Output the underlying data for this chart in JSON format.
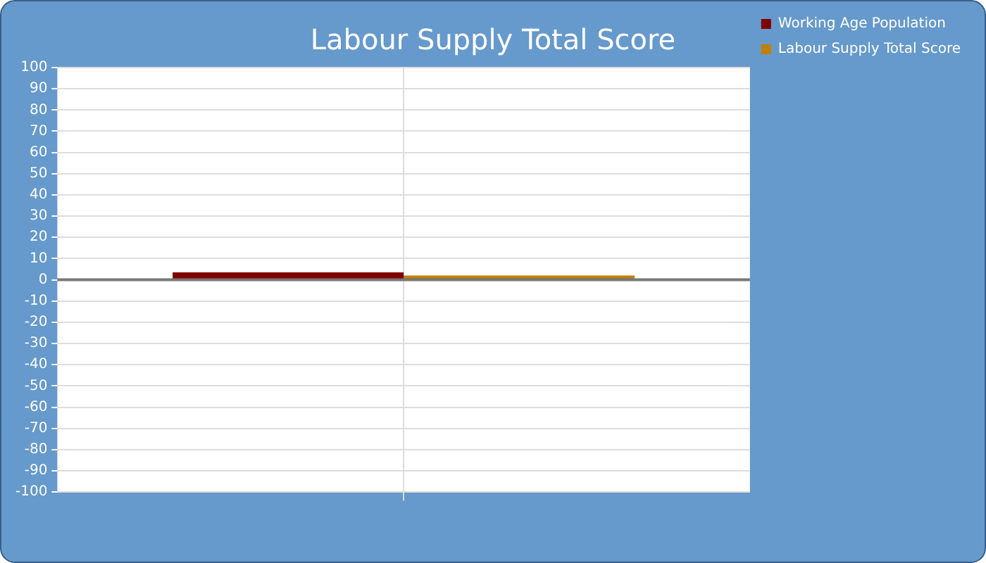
{
  "chart_data": {
    "type": "bar",
    "title": "Labour Supply Total Score",
    "categories": [
      null
    ],
    "series": [
      {
        "name": "Working Age Population",
        "color": "#800000",
        "values": [
          3.5
        ]
      },
      {
        "name": "Labour Supply Total Score",
        "color": "#c08000",
        "values": [
          2
        ]
      }
    ],
    "ylim": [
      -100,
      100
    ],
    "yticks": [
      -100,
      -90,
      -80,
      -70,
      -60,
      -50,
      -40,
      -30,
      -20,
      -10,
      0,
      10,
      20,
      30,
      40,
      50,
      60,
      70,
      80,
      90,
      100
    ],
    "grid": true,
    "legend": "right"
  }
}
